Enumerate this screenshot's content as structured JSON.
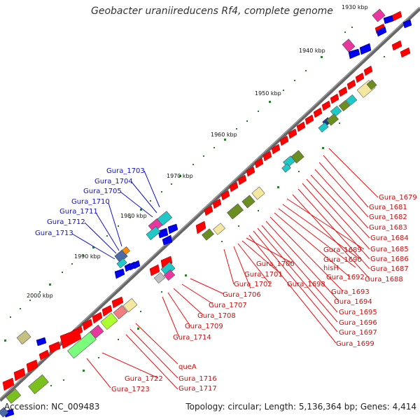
{
  "title": "Geobacter uraniireducens Rf4, complete genome",
  "accession": "Accession: NC_009483",
  "summary": "Topology: circular; Length: 5,136,364 bp; Genes: 4,414",
  "kbp_labels": [
    "1930 kbp",
    "1940 kbp",
    "1950 kbp",
    "1960 kbp",
    "1970 kbp",
    "1980 kbp",
    "1990 kbp",
    "2000 kbp"
  ],
  "blue_labels": [
    "Gura_1703",
    "Gura_1704",
    "Gura_1705",
    "Gura_1710",
    "Gura_1711",
    "Gura_1712",
    "Gura_1713"
  ],
  "red_labels": [
    "Gura_1679",
    "Gura_1681",
    "Gura_1682",
    "Gura_1683",
    "Gura_1684",
    "Gura_1685",
    "Gura_1686",
    "Gura_1687",
    "Gura_1688",
    "Gura_1689",
    "Gura_1690",
    "hisH",
    "Gura_1692",
    "Gura_1693",
    "Gura_1694",
    "Gura_1695",
    "Gura_1696",
    "Gura_1697",
    "Gura_1699",
    "Gura_1700",
    "Gura_1701",
    "Gura_1702",
    "Gura_1698",
    "Gura_1706",
    "Gura_1707",
    "Gura_1708",
    "Gura_1709",
    "Gura_1714",
    "queA",
    "Gura_1716",
    "Gura_1717",
    "Gura_1722",
    "Gura_1723"
  ],
  "colors": {
    "backbone": "#777777",
    "tick": "#2e7d32",
    "forward_gene": "#ff0000",
    "reverse_gene": "#0000ee",
    "blue_label": "#1010cc",
    "red_label": "#cc1010"
  }
}
